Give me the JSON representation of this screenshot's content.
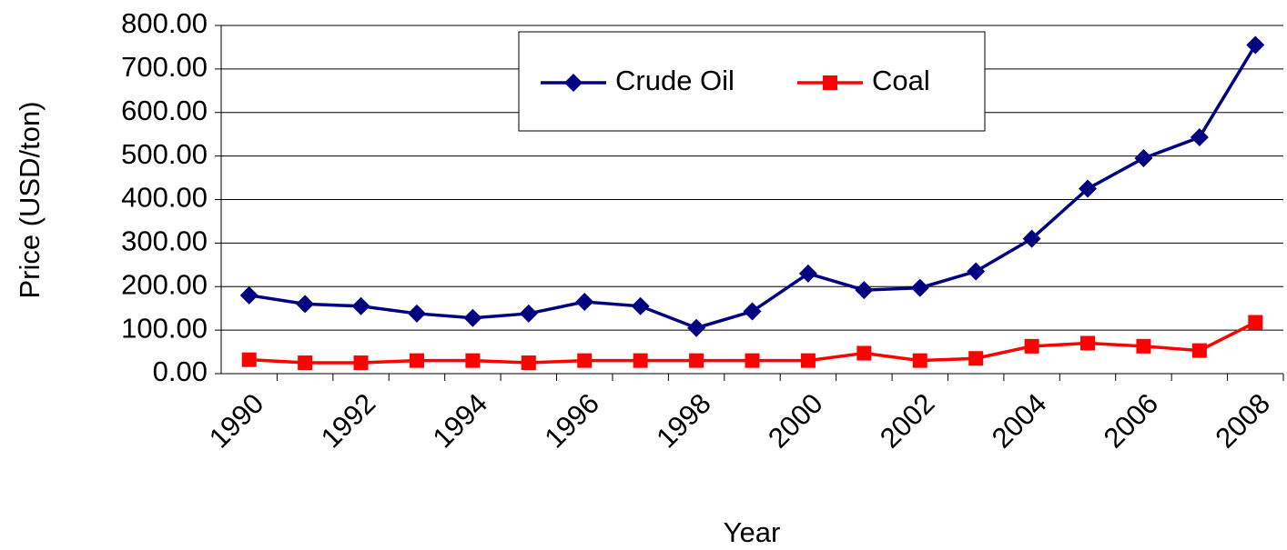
{
  "chart_data": {
    "type": "line",
    "x_label": "Year",
    "y_label": "Price (USD/ton)",
    "categories": [
      "1990",
      null,
      "1992",
      null,
      "1994",
      null,
      "1996",
      null,
      "1998",
      null,
      "2000",
      null,
      "2002",
      null,
      "2004",
      null,
      "2006",
      null,
      "2008"
    ],
    "series": [
      {
        "name": "Crude Oil",
        "color": "#000080",
        "marker": "diamond",
        "values": [
          180,
          160,
          155,
          138,
          128,
          138,
          165,
          155,
          105,
          143,
          230,
          192,
          197,
          235,
          310,
          425,
          495,
          543,
          755
        ]
      },
      {
        "name": "Coal",
        "color": "#ff0000",
        "marker": "square",
        "values": [
          32,
          25,
          25,
          30,
          30,
          25,
          30,
          30,
          30,
          30,
          30,
          47,
          30,
          35,
          63,
          70,
          63,
          53,
          118
        ]
      }
    ],
    "ylim": [
      0,
      800
    ],
    "yticks": [
      {
        "value": 0,
        "label": "0.00"
      },
      {
        "value": 100,
        "label": "100.00"
      },
      {
        "value": 200,
        "label": "200.00"
      },
      {
        "value": 300,
        "label": "300.00"
      },
      {
        "value": 400,
        "label": "400.00"
      },
      {
        "value": 500,
        "label": "500.00"
      },
      {
        "value": 600,
        "label": "600.00"
      },
      {
        "value": 700,
        "label": "700.00"
      },
      {
        "value": 800,
        "label": "800.00"
      }
    ],
    "grid": true,
    "legend": "upper center"
  }
}
